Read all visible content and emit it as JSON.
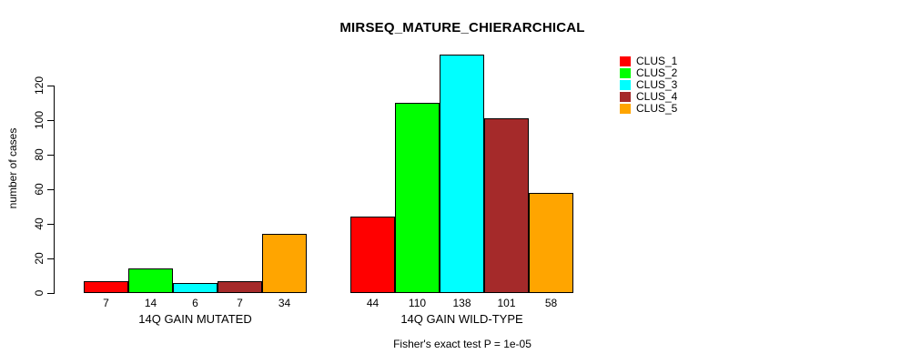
{
  "title": "MIRSEQ_MATURE_CHIERARCHICAL",
  "footnote": "Fisher's exact test P = 1e-05",
  "legend": {
    "items": [
      {
        "label": "CLUS_1",
        "color": "#FF0000"
      },
      {
        "label": "CLUS_2",
        "color": "#00FF00"
      },
      {
        "label": "CLUS_3",
        "color": "#00FFFF"
      },
      {
        "label": "CLUS_4",
        "color": "#A52A2A"
      },
      {
        "label": "CLUS_5",
        "color": "#FFA500"
      }
    ]
  },
  "chart_data": {
    "type": "bar",
    "title": "MIRSEQ_MATURE_CHIERARCHICAL",
    "xlabel": "",
    "ylabel": "number of cases",
    "categories": [
      "14Q GAIN MUTATED",
      "14Q GAIN WILD-TYPE"
    ],
    "series": [
      {
        "name": "CLUS_1",
        "color": "#FF0000",
        "values": [
          7,
          44
        ]
      },
      {
        "name": "CLUS_2",
        "color": "#00FF00",
        "values": [
          14,
          110
        ]
      },
      {
        "name": "CLUS_3",
        "color": "#00FFFF",
        "values": [
          6,
          138
        ]
      },
      {
        "name": "CLUS_4",
        "color": "#A52A2A",
        "values": [
          7,
          101
        ]
      },
      {
        "name": "CLUS_5",
        "color": "#FFA500",
        "values": [
          34,
          58
        ]
      }
    ],
    "value_labels": [
      [
        7,
        14,
        6,
        7,
        34
      ],
      [
        44,
        110,
        138,
        101,
        58
      ]
    ],
    "yticks": [
      0,
      20,
      40,
      60,
      80,
      100,
      120
    ],
    "ylim": [
      0,
      143
    ],
    "grid": false,
    "bar_border_color": "#000000",
    "legend_position": "right",
    "annotation": "Fisher's exact test P = 1e-05"
  }
}
